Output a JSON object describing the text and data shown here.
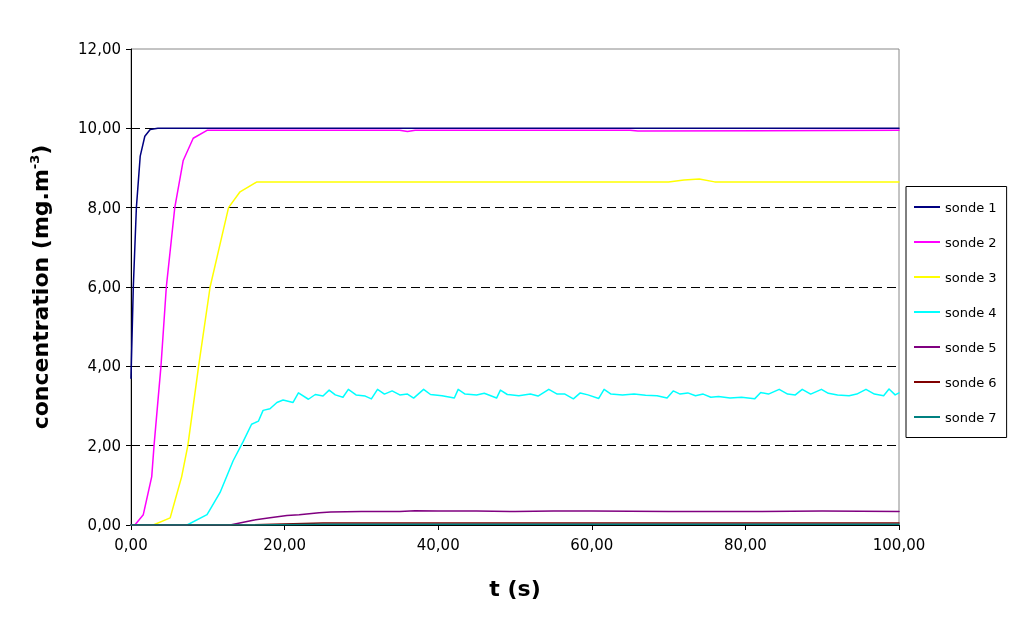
{
  "chart_data": {
    "type": "line",
    "xlabel": "t (s)",
    "ylabel": "concentration (mg.m$^{-3}$)",
    "xlim": [
      0,
      100
    ],
    "xticks": [
      {
        "value": 0,
        "label": "0,00"
      },
      {
        "value": 20,
        "label": "20,00"
      },
      {
        "value": 40,
        "label": "40,00"
      },
      {
        "value": 60,
        "label": "60,00"
      },
      {
        "value": 80,
        "label": "80,00"
      },
      {
        "value": 100,
        "label": "100,00"
      }
    ],
    "ylim": [
      0,
      12
    ],
    "yticks": [
      {
        "value": 0,
        "label": "0,00"
      },
      {
        "value": 2,
        "label": "2,00"
      },
      {
        "value": 4,
        "label": "4,00"
      },
      {
        "value": 6,
        "label": "6,00"
      },
      {
        "value": 8,
        "label": "8,00"
      },
      {
        "value": 10,
        "label": "10,00"
      },
      {
        "value": 12,
        "label": "12,00"
      }
    ],
    "grid": "y",
    "legend": "right",
    "marker": "none",
    "line_style": "solid",
    "series": [
      {
        "name": "sonde 1",
        "color": "#000080",
        "x": [
          0,
          0.3,
          0.7,
          1.2,
          1.8,
          2.5,
          3.5,
          100
        ],
        "values": [
          3.7,
          6,
          8,
          9.3,
          9.8,
          9.97,
          10,
          10
        ]
      },
      {
        "name": "sonde 2",
        "color": "#ff00ff",
        "x": [
          0,
          0.5,
          1.6,
          2.7,
          3,
          3.9,
          4.6,
          5.7,
          6.8,
          8.1,
          9.9,
          35,
          36,
          37,
          65,
          66,
          100
        ],
        "values": [
          0,
          0,
          0.26,
          1.22,
          2,
          4,
          6,
          8,
          9.19,
          9.75,
          9.95,
          9.95,
          9.92,
          9.95,
          9.95,
          9.93,
          9.95
        ]
      },
      {
        "name": "sonde 3",
        "color": "#ffff00",
        "x": [
          0,
          2.9,
          5.1,
          6.6,
          7.4,
          8.8,
          10.3,
          12.7,
          14.2,
          16.4,
          40,
          70,
          72,
          74,
          76,
          100
        ],
        "values": [
          0,
          0,
          0.18,
          1.22,
          2,
          4,
          6,
          8,
          8.4,
          8.65,
          8.65,
          8.65,
          8.7,
          8.72,
          8.65,
          8.65
        ]
      },
      {
        "name": "sonde 4",
        "color": "#00ffff",
        "x": [
          0,
          7.3,
          9.9,
          11.6,
          13.3,
          14.6,
          15.7,
          16.6,
          17.2,
          18.1,
          19,
          19.8,
          21.1,
          21.8,
          23.1,
          24,
          25,
          25.8,
          26.6,
          27.6,
          28.3,
          29.3,
          30.5,
          31.3,
          32.1,
          33,
          34,
          35,
          36,
          36.8,
          38.1,
          39,
          40.5,
          42.1,
          42.6,
          43.5,
          45,
          46,
          47.6,
          48.1,
          49,
          50.5,
          52,
          53,
          54.4,
          55.5,
          56.5,
          57.6,
          58.5,
          59.5,
          60.9,
          61.6,
          62.5,
          64,
          65.5,
          67,
          68.5,
          69.8,
          70.6,
          71.5,
          72.5,
          73.5,
          74.5,
          75.5,
          76.5,
          78,
          79.5,
          81.2,
          82,
          83,
          84.4,
          85.5,
          86.5,
          87.4,
          88.5,
          89.9,
          90.8,
          92,
          93.5,
          94.5,
          95.7,
          96.8,
          98,
          98.7,
          99.5,
          100
        ],
        "values": [
          0,
          0,
          0.26,
          0.82,
          1.62,
          2.1,
          2.54,
          2.62,
          2.89,
          2.93,
          3.09,
          3.15,
          3.09,
          3.33,
          3.17,
          3.29,
          3.25,
          3.4,
          3.28,
          3.22,
          3.42,
          3.28,
          3.25,
          3.18,
          3.42,
          3.3,
          3.38,
          3.28,
          3.3,
          3.2,
          3.42,
          3.29,
          3.26,
          3.2,
          3.42,
          3.3,
          3.28,
          3.32,
          3.2,
          3.4,
          3.29,
          3.26,
          3.3,
          3.25,
          3.42,
          3.3,
          3.3,
          3.18,
          3.33,
          3.28,
          3.19,
          3.42,
          3.3,
          3.28,
          3.3,
          3.27,
          3.26,
          3.2,
          3.38,
          3.3,
          3.33,
          3.26,
          3.3,
          3.22,
          3.24,
          3.2,
          3.22,
          3.18,
          3.34,
          3.3,
          3.42,
          3.3,
          3.28,
          3.42,
          3.3,
          3.42,
          3.32,
          3.28,
          3.26,
          3.3,
          3.42,
          3.3,
          3.26,
          3.43,
          3.28,
          3.33
        ]
      },
      {
        "name": "sonde 5",
        "color": "#800080",
        "x": [
          0,
          12.9,
          15.9,
          18.1,
          20.3,
          21.9,
          24.5,
          26,
          30,
          35,
          37,
          40,
          45,
          50,
          55,
          60,
          70,
          80,
          90,
          100
        ],
        "values": [
          0,
          0,
          0.12,
          0.18,
          0.24,
          0.26,
          0.31,
          0.33,
          0.34,
          0.34,
          0.36,
          0.35,
          0.35,
          0.34,
          0.35,
          0.35,
          0.34,
          0.34,
          0.35,
          0.34
        ]
      },
      {
        "name": "sonde 6",
        "color": "#800000",
        "x": [
          0,
          15,
          25,
          100
        ],
        "values": [
          0,
          0,
          0.05,
          0.05
        ]
      },
      {
        "name": "sonde 7",
        "color": "#008080",
        "x": [
          0,
          15,
          25,
          100
        ],
        "values": [
          0,
          0,
          0.02,
          0.02
        ]
      }
    ]
  }
}
